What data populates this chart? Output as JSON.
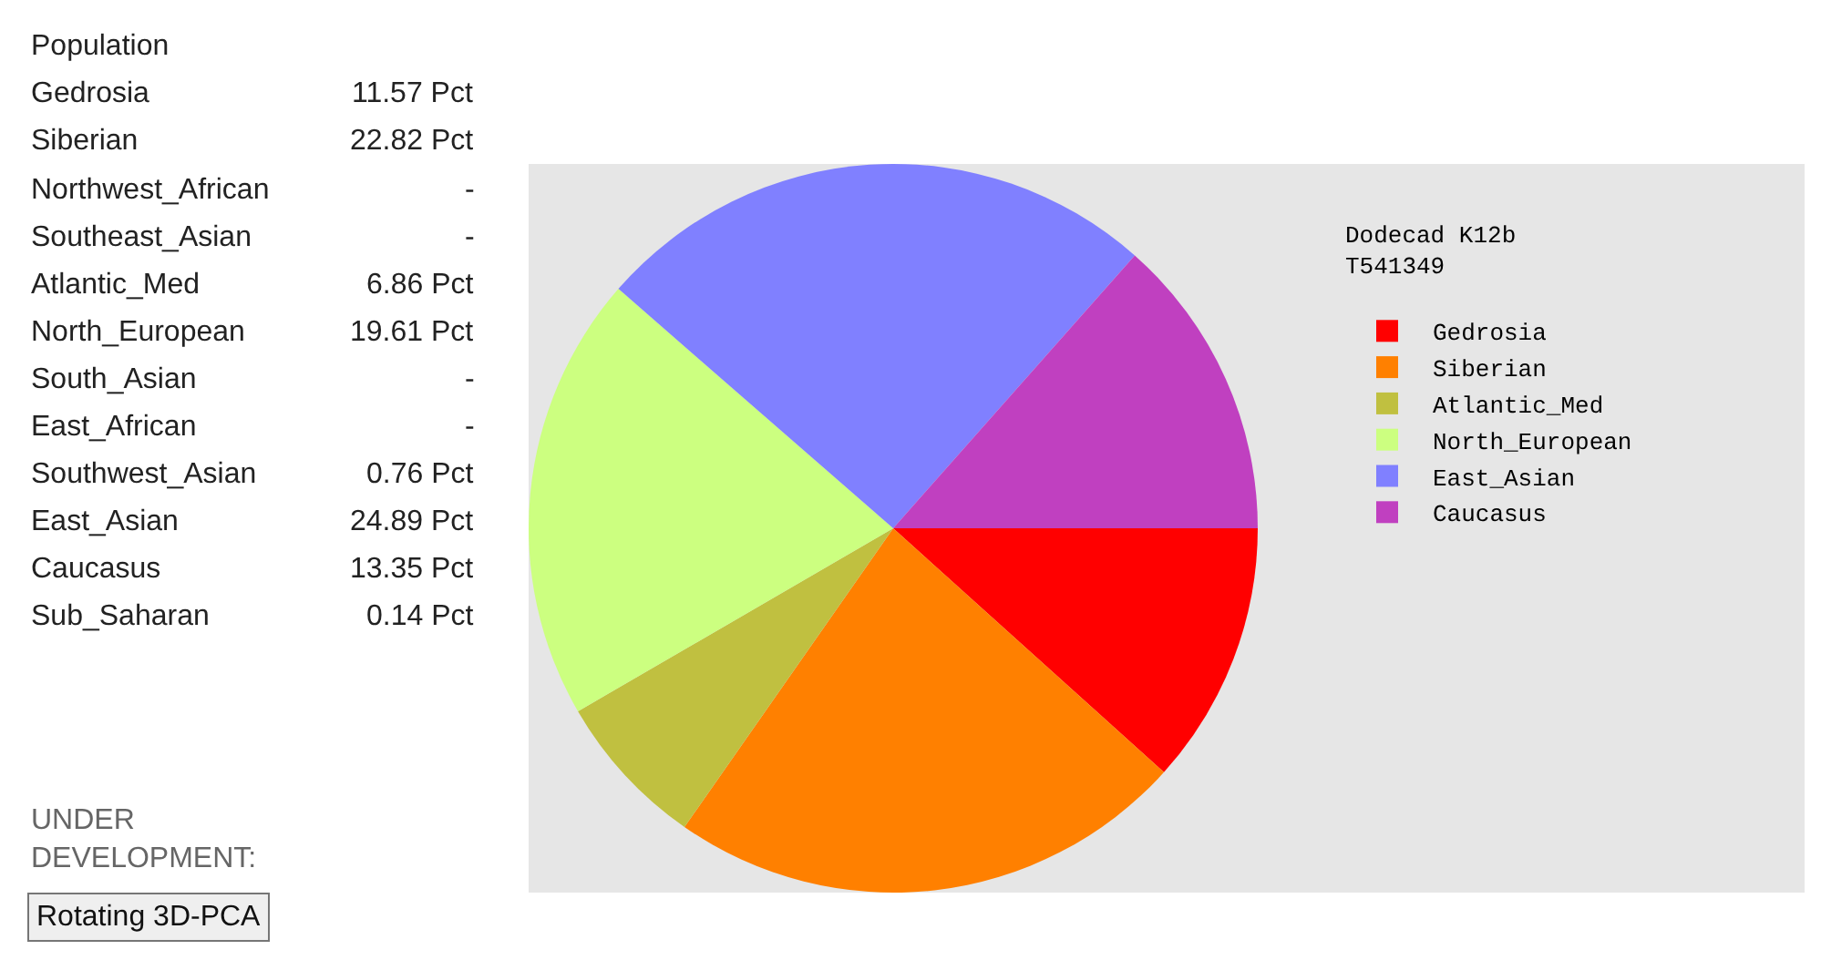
{
  "chart_data": [
    {
      "type": "other",
      "title": "Population",
      "categories": [
        "Gedrosia",
        "Siberian",
        "Northwest_African",
        "Southeast_Asian",
        "Atlantic_Med",
        "North_European",
        "South_Asian",
        "East_African",
        "Southwest_Asian",
        "East_Asian",
        "Caucasus",
        "Sub_Saharan"
      ],
      "value_labels": [
        "11.57 Pct",
        "22.82 Pct",
        "-",
        "-",
        "6.86 Pct",
        "19.61 Pct",
        "-",
        "-",
        "0.76 Pct",
        "24.89 Pct",
        "13.35 Pct",
        "0.14 Pct"
      ],
      "annotations": [
        "UNDER DEVELOPMENT:",
        "Rotating 3D-PCA"
      ]
    },
    {
      "type": "pie",
      "legend_title": "Dodecad K12b\nT541349",
      "categories": [
        "Gedrosia",
        "Siberian",
        "Atlantic_Med",
        "North_European",
        "East_Asian",
        "Caucasus"
      ],
      "values": [
        11.57,
        22.82,
        6.86,
        19.61,
        24.89,
        13.35
      ],
      "colors": [
        "#ff0000",
        "#ff8000",
        "#c0c040",
        "#ccff80",
        "#8080ff",
        "#c040c0"
      ],
      "legend": "right"
    }
  ]
}
